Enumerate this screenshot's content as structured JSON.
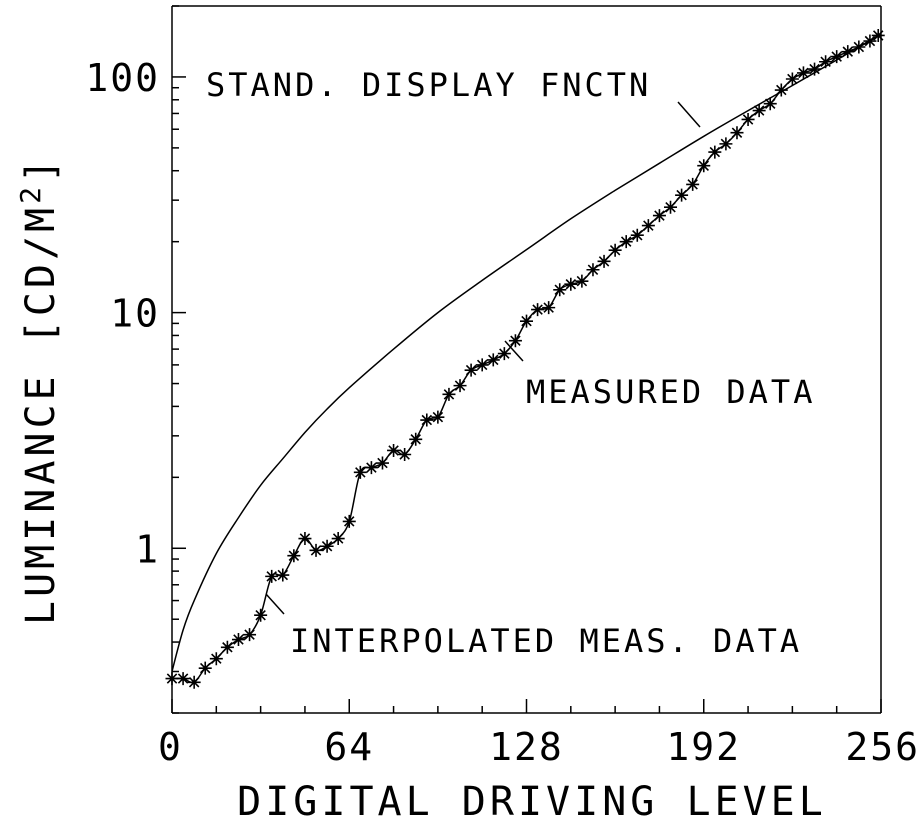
{
  "chart_data": {
    "type": "line",
    "xlabel": "DIGITAL DRIVING LEVEL",
    "ylabel": "LUMINANCE [CD/M",
    "ylabel_superscript": "2",
    "ylabel_suffix": "]",
    "xlim": [
      0,
      256
    ],
    "ylim": [
      0.2,
      200
    ],
    "yscale": "log",
    "grid": false,
    "x_ticks": [
      0,
      64,
      128,
      192,
      256
    ],
    "x_tick_labels": [
      "0",
      "64",
      "128",
      "192",
      "256"
    ],
    "y_ticks": [
      1,
      10,
      100
    ],
    "y_tick_labels": [
      "1",
      "10",
      "100"
    ],
    "annotations": [
      {
        "text": "STAND. DISPLAY FNCTN",
        "series": "standard_display_function"
      },
      {
        "text": "MEASURED DATA",
        "series": "measured_data"
      },
      {
        "text": "INTERPOLATED MEAS. DATA",
        "series": "interpolated"
      }
    ],
    "series": [
      {
        "key": "standard_display_function",
        "style": "line",
        "x": [
          0,
          4,
          8,
          16,
          24,
          32,
          40,
          48,
          56,
          64,
          80,
          96,
          112,
          128,
          144,
          160,
          176,
          192,
          208,
          224,
          240,
          255
        ],
        "y": [
          0.3,
          0.45,
          0.6,
          0.95,
          1.35,
          1.85,
          2.4,
          3.1,
          3.9,
          4.8,
          7.0,
          10.0,
          13.7,
          18.5,
          25,
          33,
          43,
          56,
          72,
          92,
          118,
          150
        ]
      },
      {
        "key": "measured_data",
        "style": "markers",
        "x": [
          0,
          4,
          8,
          12,
          16,
          20,
          24,
          28,
          32,
          36,
          40,
          44,
          48,
          52,
          56,
          60,
          64,
          68,
          72,
          76,
          80,
          84,
          88,
          92,
          96,
          100,
          104,
          108,
          112,
          116,
          120,
          124,
          128,
          132,
          136,
          140,
          144,
          148,
          152,
          156,
          160,
          164,
          168,
          172,
          176,
          180,
          184,
          188,
          192,
          196,
          200,
          204,
          208,
          212,
          216,
          220,
          224,
          228,
          232,
          236,
          240,
          244,
          248,
          252,
          255
        ],
        "y": [
          0.28,
          0.28,
          0.27,
          0.31,
          0.34,
          0.38,
          0.41,
          0.43,
          0.52,
          0.76,
          0.77,
          0.93,
          1.1,
          0.98,
          1.02,
          1.1,
          1.3,
          2.1,
          2.2,
          2.3,
          2.6,
          2.5,
          2.9,
          3.5,
          3.6,
          4.5,
          4.9,
          5.7,
          6.0,
          6.3,
          6.7,
          7.6,
          9.2,
          10.3,
          10.5,
          12.5,
          13.2,
          13.6,
          15.2,
          16.5,
          18.4,
          20.0,
          21.3,
          23.4,
          25.8,
          28.0,
          31.5,
          35.0,
          42.0,
          48.0,
          52.0,
          58.0,
          66.0,
          72.0,
          77.0,
          88.0,
          98.0,
          104.0,
          108.0,
          116.0,
          122.0,
          128.0,
          134.0,
          142.0,
          150.0
        ]
      }
    ]
  }
}
